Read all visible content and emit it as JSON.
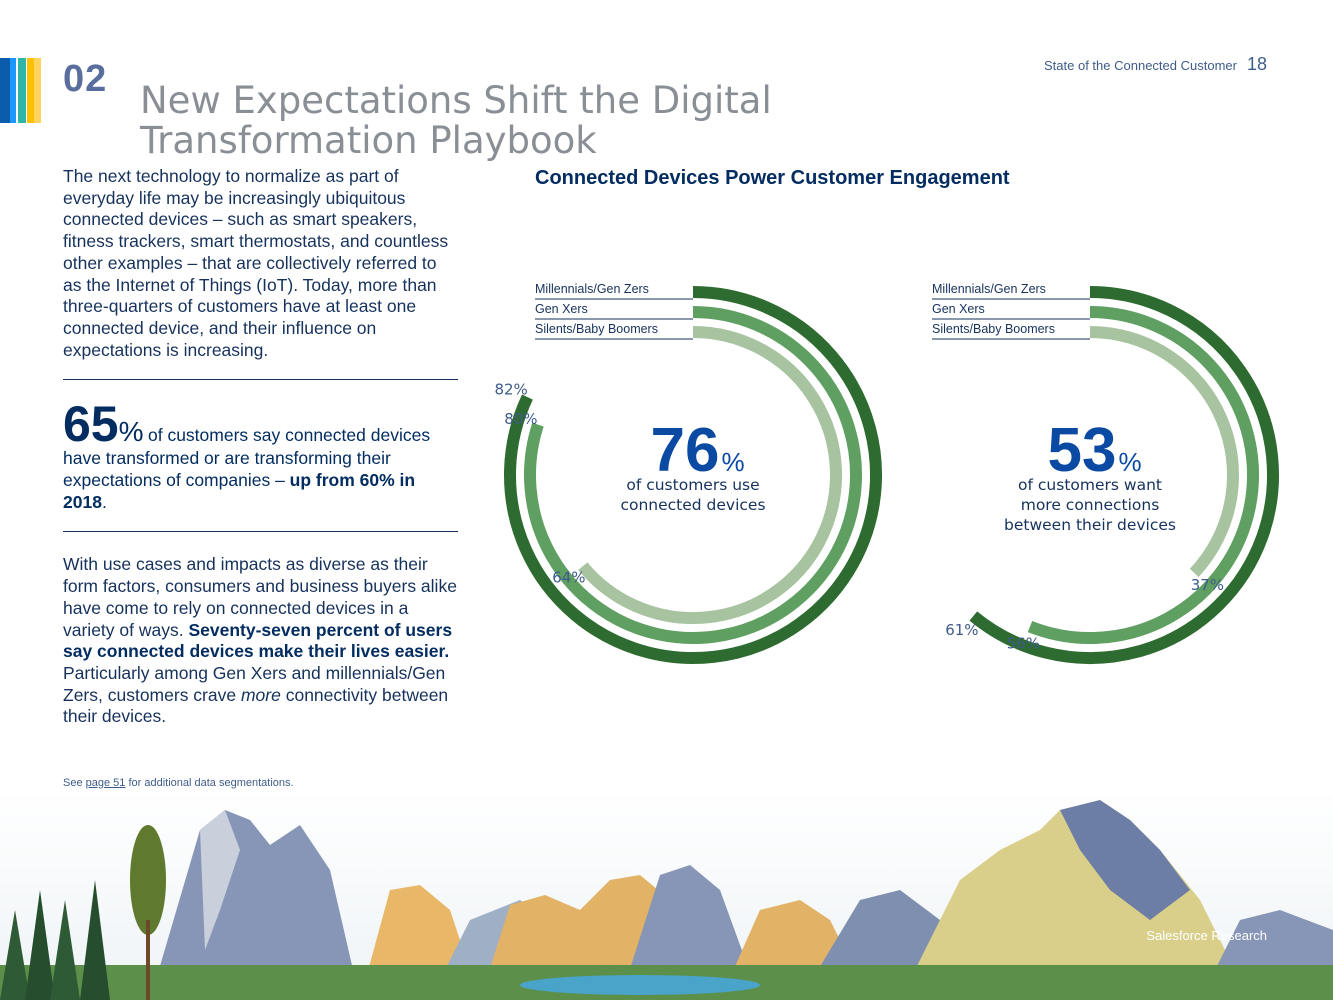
{
  "header": {
    "section_number": "02",
    "title_line1": "New Expectations Shift the Digital",
    "title_line2": "Transformation Playbook",
    "report_name": "State of the Connected Customer",
    "page_number": "18"
  },
  "accent_colors": [
    "#0b5cab",
    "#1b96ff",
    "#2fb6a8",
    "#fcc003",
    "#ffd45c"
  ],
  "left": {
    "intro": "The next technology to normalize as part of everyday life may be increasingly ubiquitous connected devices – such as smart speakers, fitness trackers, smart thermostats, and countless other examples – that are collectively referred to as the Internet of Things (IoT). Today, more than three-quarters of customers have at least one connected device, and their influence on expectations is increasing.",
    "stat": {
      "number": "65",
      "percent_sign": "%",
      "text_before": "of customers say connected devices have transformed or are transforming their expectations of companies – ",
      "bold": "up from 60% in 2018",
      "text_after": "."
    },
    "body2": {
      "part1": "With use cases and impacts as diverse as their form factors, consumers and business buyers alike have come to rely on connected devices in a variety of ways. ",
      "bold": "Seventy-seven percent of users say connected devices make their lives easier.",
      "part2": " Particularly among Gen Xers and millennials/Gen Zers, customers crave ",
      "italic": "more",
      "part3": " connectivity between their devices."
    },
    "footnote": {
      "prefix": "See ",
      "link": "page 51",
      "suffix": " for additional data segmentations."
    }
  },
  "chart_title": "Connected Devices Power Customer Engagement",
  "chart_data": [
    {
      "type": "radial-bar",
      "title": "of customers use connected devices",
      "headline_value": "76",
      "headline_unit": "%",
      "caption_lines": [
        "of customers use",
        "connected devices"
      ],
      "categories": [
        "Millennials/Gen Zers",
        "Gen Xers",
        "Silents/Baby Boomers"
      ],
      "values": [
        82,
        80,
        64
      ],
      "value_labels": [
        "82%",
        "80%",
        "64%"
      ],
      "colors": [
        "#2e6b30",
        "#5f9f62",
        "#a7c3a0"
      ]
    },
    {
      "type": "radial-bar",
      "title": "of customers want more connections between their devices",
      "headline_value": "53",
      "headline_unit": "%",
      "caption_lines": [
        "of customers want",
        "more connections",
        "between their devices"
      ],
      "categories": [
        "Millennials/Gen Zers",
        "Gen Xers",
        "Silents/Baby Boomers"
      ],
      "values": [
        61,
        56,
        37
      ],
      "value_labels": [
        "61%",
        "56%",
        "37%"
      ],
      "colors": [
        "#2e6b30",
        "#5f9f62",
        "#a7c3a0"
      ]
    }
  ],
  "footer": {
    "brand": "Salesforce Research"
  }
}
